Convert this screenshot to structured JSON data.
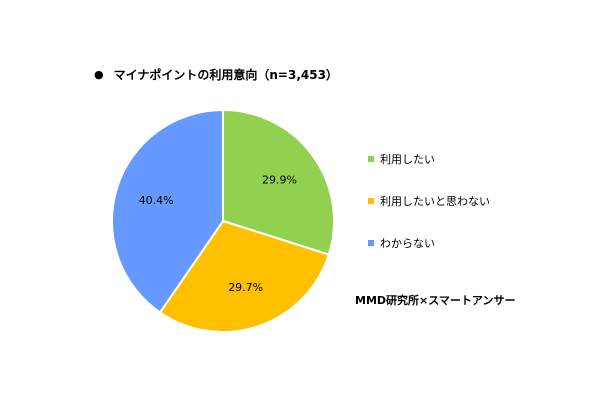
{
  "title": "マイナポイントの利用意向（n=3,453）",
  "title_bullet": "●",
  "source": "MMD研究所×スマートアンサー",
  "chart_data": {
    "type": "pie",
    "title": "マイナポイントの利用意向（n=3,453）",
    "slices": [
      {
        "label": "利用したい",
        "value": 29.9,
        "display": "29.9%",
        "color": "#92D050"
      },
      {
        "label": "利用したいと思わない",
        "value": 29.7,
        "display": "29.7%",
        "color": "#FFC000"
      },
      {
        "label": "わからない",
        "value": 40.4,
        "display": "40.4%",
        "color": "#6699FF"
      }
    ],
    "start_angle": "12 o'clock",
    "direction": "clockwise",
    "legend_position": "right"
  }
}
